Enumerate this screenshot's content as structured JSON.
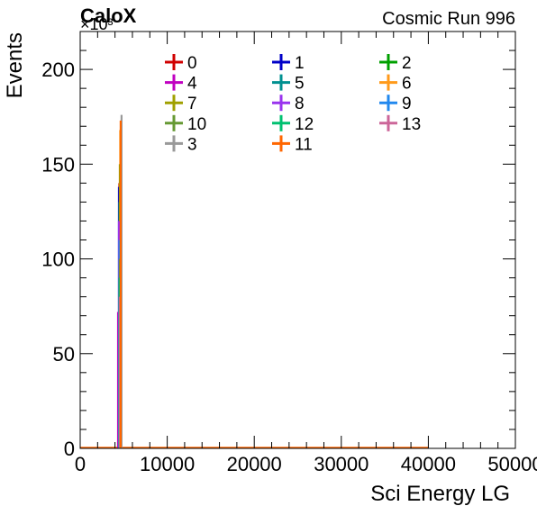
{
  "chart_data": {
    "type": "histogram",
    "title": "Cosmic Run 996",
    "brand": "CaloX",
    "xlabel": "Sci Energy LG",
    "ylabel": "Events",
    "y_multiplier": "×10³",
    "xlim": [
      0,
      50000
    ],
    "ylim": [
      0,
      220
    ],
    "x_ticks": [
      0,
      10000,
      20000,
      30000,
      40000,
      50000
    ],
    "x_tick_labels": [
      "0",
      "10000",
      "20000",
      "30000",
      "40000",
      "50000"
    ],
    "y_ticks": [
      0,
      50,
      100,
      150,
      200
    ],
    "y_tick_labels": [
      "0",
      "50",
      "100",
      "150",
      "200"
    ],
    "range_end": 40000,
    "legend": [
      "0",
      "1",
      "2",
      "4",
      "5",
      "6",
      "7",
      "8",
      "9",
      "10",
      "12",
      "13",
      "3",
      "11"
    ],
    "series": [
      {
        "name": "0",
        "color": "#d00000",
        "peak_x": 4500,
        "peak_y": 140
      },
      {
        "name": "1",
        "color": "#0000c8",
        "peak_x": 4450,
        "peak_y": 138
      },
      {
        "name": "2",
        "color": "#00a000",
        "peak_x": 4400,
        "peak_y": 18
      },
      {
        "name": "4",
        "color": "#c000c0",
        "peak_x": 4350,
        "peak_y": 72
      },
      {
        "name": "5",
        "color": "#009090",
        "peak_x": 4500,
        "peak_y": 130
      },
      {
        "name": "6",
        "color": "#ff9a1a",
        "peak_x": 4600,
        "peak_y": 168
      },
      {
        "name": "7",
        "color": "#a0a000",
        "peak_x": 4550,
        "peak_y": 150
      },
      {
        "name": "8",
        "color": "#9933ee",
        "peak_x": 4450,
        "peak_y": 120
      },
      {
        "name": "9",
        "color": "#2288ee",
        "peak_x": 4500,
        "peak_y": 110
      },
      {
        "name": "10",
        "color": "#669933",
        "peak_x": 4550,
        "peak_y": 100
      },
      {
        "name": "12",
        "color": "#00c070",
        "peak_x": 4500,
        "peak_y": 90
      },
      {
        "name": "13",
        "color": "#cc6699",
        "peak_x": 4550,
        "peak_y": 80
      },
      {
        "name": "3",
        "color": "#999999",
        "peak_x": 4750,
        "peak_y": 176
      },
      {
        "name": "11",
        "color": "#ff6600",
        "peak_x": 4650,
        "peak_y": 173
      }
    ]
  }
}
